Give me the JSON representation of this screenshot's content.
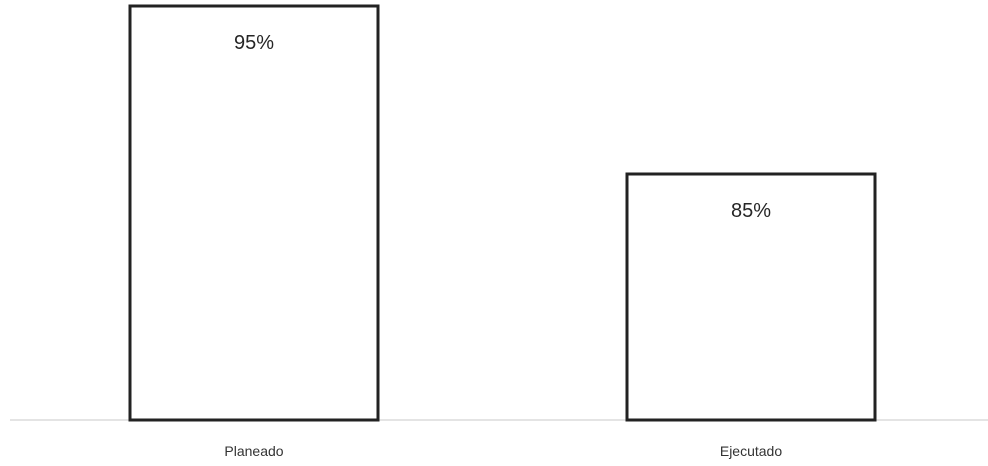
{
  "chart_data": {
    "type": "bar",
    "categories": [
      "Planeado",
      "Ejecutado"
    ],
    "values": [
      95,
      85
    ],
    "data_labels": [
      "95%",
      "85%"
    ],
    "title": "",
    "xlabel": "",
    "ylabel": "",
    "ylim": [
      80,
      95
    ],
    "unit": "%",
    "grid": false,
    "legend": "none",
    "colors": {
      "bar_fill": "#ffffff",
      "bar_stroke": "#222222",
      "axis": "#c8c8c8",
      "text": "#262626"
    }
  }
}
